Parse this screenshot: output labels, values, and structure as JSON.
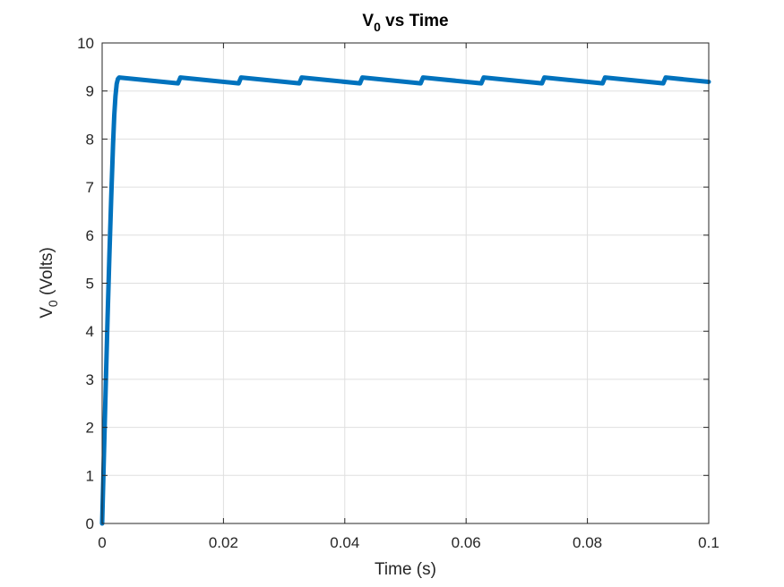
{
  "chart_data": {
    "type": "line",
    "title_main": "V",
    "title_sub": "0",
    "title_rest": " vs Time",
    "xlabel": "Time (s)",
    "ylabel_main": "V",
    "ylabel_sub": "0",
    "ylabel_rest": " (Volts)",
    "xlim": [
      0,
      0.1
    ],
    "ylim": [
      0,
      10
    ],
    "xticks": [
      0,
      0.02,
      0.04,
      0.06,
      0.08,
      0.1
    ],
    "xtick_labels": [
      "0",
      "0.02",
      "0.04",
      "0.06",
      "0.08",
      "0.1"
    ],
    "yticks": [
      0,
      1,
      2,
      3,
      4,
      5,
      6,
      7,
      8,
      9,
      10
    ],
    "ytick_labels": [
      "0",
      "1",
      "2",
      "3",
      "4",
      "5",
      "6",
      "7",
      "8",
      "9",
      "10"
    ],
    "grid": true,
    "line_color": "#0072BD",
    "series": [
      {
        "x": [
          0,
          0.0003,
          0.0006,
          0.0009,
          0.0012,
          0.0015,
          0.0018,
          0.002,
          0.0022,
          0.0024,
          0.0026,
          0.0028,
          0.0125,
          0.0127,
          0.0129,
          0.0225,
          0.0227,
          0.0229,
          0.0325,
          0.0327,
          0.0329,
          0.0425,
          0.0427,
          0.0429,
          0.0525,
          0.0527,
          0.0529,
          0.0625,
          0.0627,
          0.0629,
          0.0725,
          0.0727,
          0.0729,
          0.0825,
          0.0827,
          0.0829,
          0.0925,
          0.0927,
          0.0929,
          0.1
        ],
        "y": [
          0,
          1.45,
          2.9,
          4.3,
          5.6,
          6.8,
          7.9,
          8.5,
          8.9,
          9.15,
          9.25,
          9.28,
          9.16,
          9.22,
          9.28,
          9.16,
          9.22,
          9.28,
          9.16,
          9.22,
          9.28,
          9.16,
          9.22,
          9.28,
          9.16,
          9.22,
          9.28,
          9.16,
          9.22,
          9.28,
          9.16,
          9.22,
          9.28,
          9.16,
          9.22,
          9.28,
          9.16,
          9.22,
          9.28,
          9.19
        ]
      }
    ]
  }
}
